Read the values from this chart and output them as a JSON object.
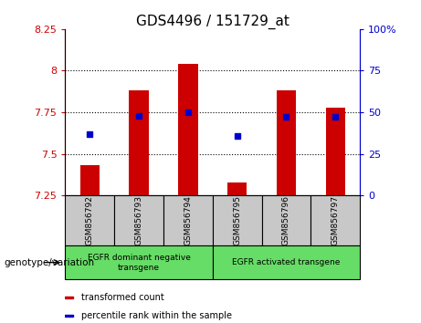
{
  "title": "GDS4496 / 151729_at",
  "samples": [
    "GSM856792",
    "GSM856793",
    "GSM856794",
    "GSM856795",
    "GSM856796",
    "GSM856797"
  ],
  "bar_values": [
    7.43,
    7.88,
    8.04,
    7.33,
    7.88,
    7.78
  ],
  "bar_bottom": 7.25,
  "percentile_values": [
    7.62,
    7.73,
    7.75,
    7.61,
    7.72,
    7.72
  ],
  "ylim": [
    7.25,
    8.25
  ],
  "yticks": [
    7.25,
    7.5,
    7.75,
    8.0,
    8.25
  ],
  "ytick_labels": [
    "7.25",
    "7.5",
    "7.75",
    "8",
    "8.25"
  ],
  "y2_ticks": [
    0,
    25,
    50,
    75,
    100
  ],
  "y2_tick_labels": [
    "0",
    "25",
    "50",
    "75",
    "100%"
  ],
  "grid_yticks": [
    7.5,
    7.75,
    8.0
  ],
  "bar_color": "#cc0000",
  "dot_color": "#0000cc",
  "group1_label": "EGFR dominant negative\ntransgene",
  "group2_label": "EGFR activated transgene",
  "group1_count": 3,
  "group2_count": 3,
  "xlabel_label": "genotype/variation",
  "legend1": "transformed count",
  "legend2": "percentile rank within the sample",
  "bg_color": "#c8c8c8",
  "green_color": "#66dd66",
  "title_fontsize": 11,
  "tick_fontsize": 8,
  "label_fontsize": 7.5
}
